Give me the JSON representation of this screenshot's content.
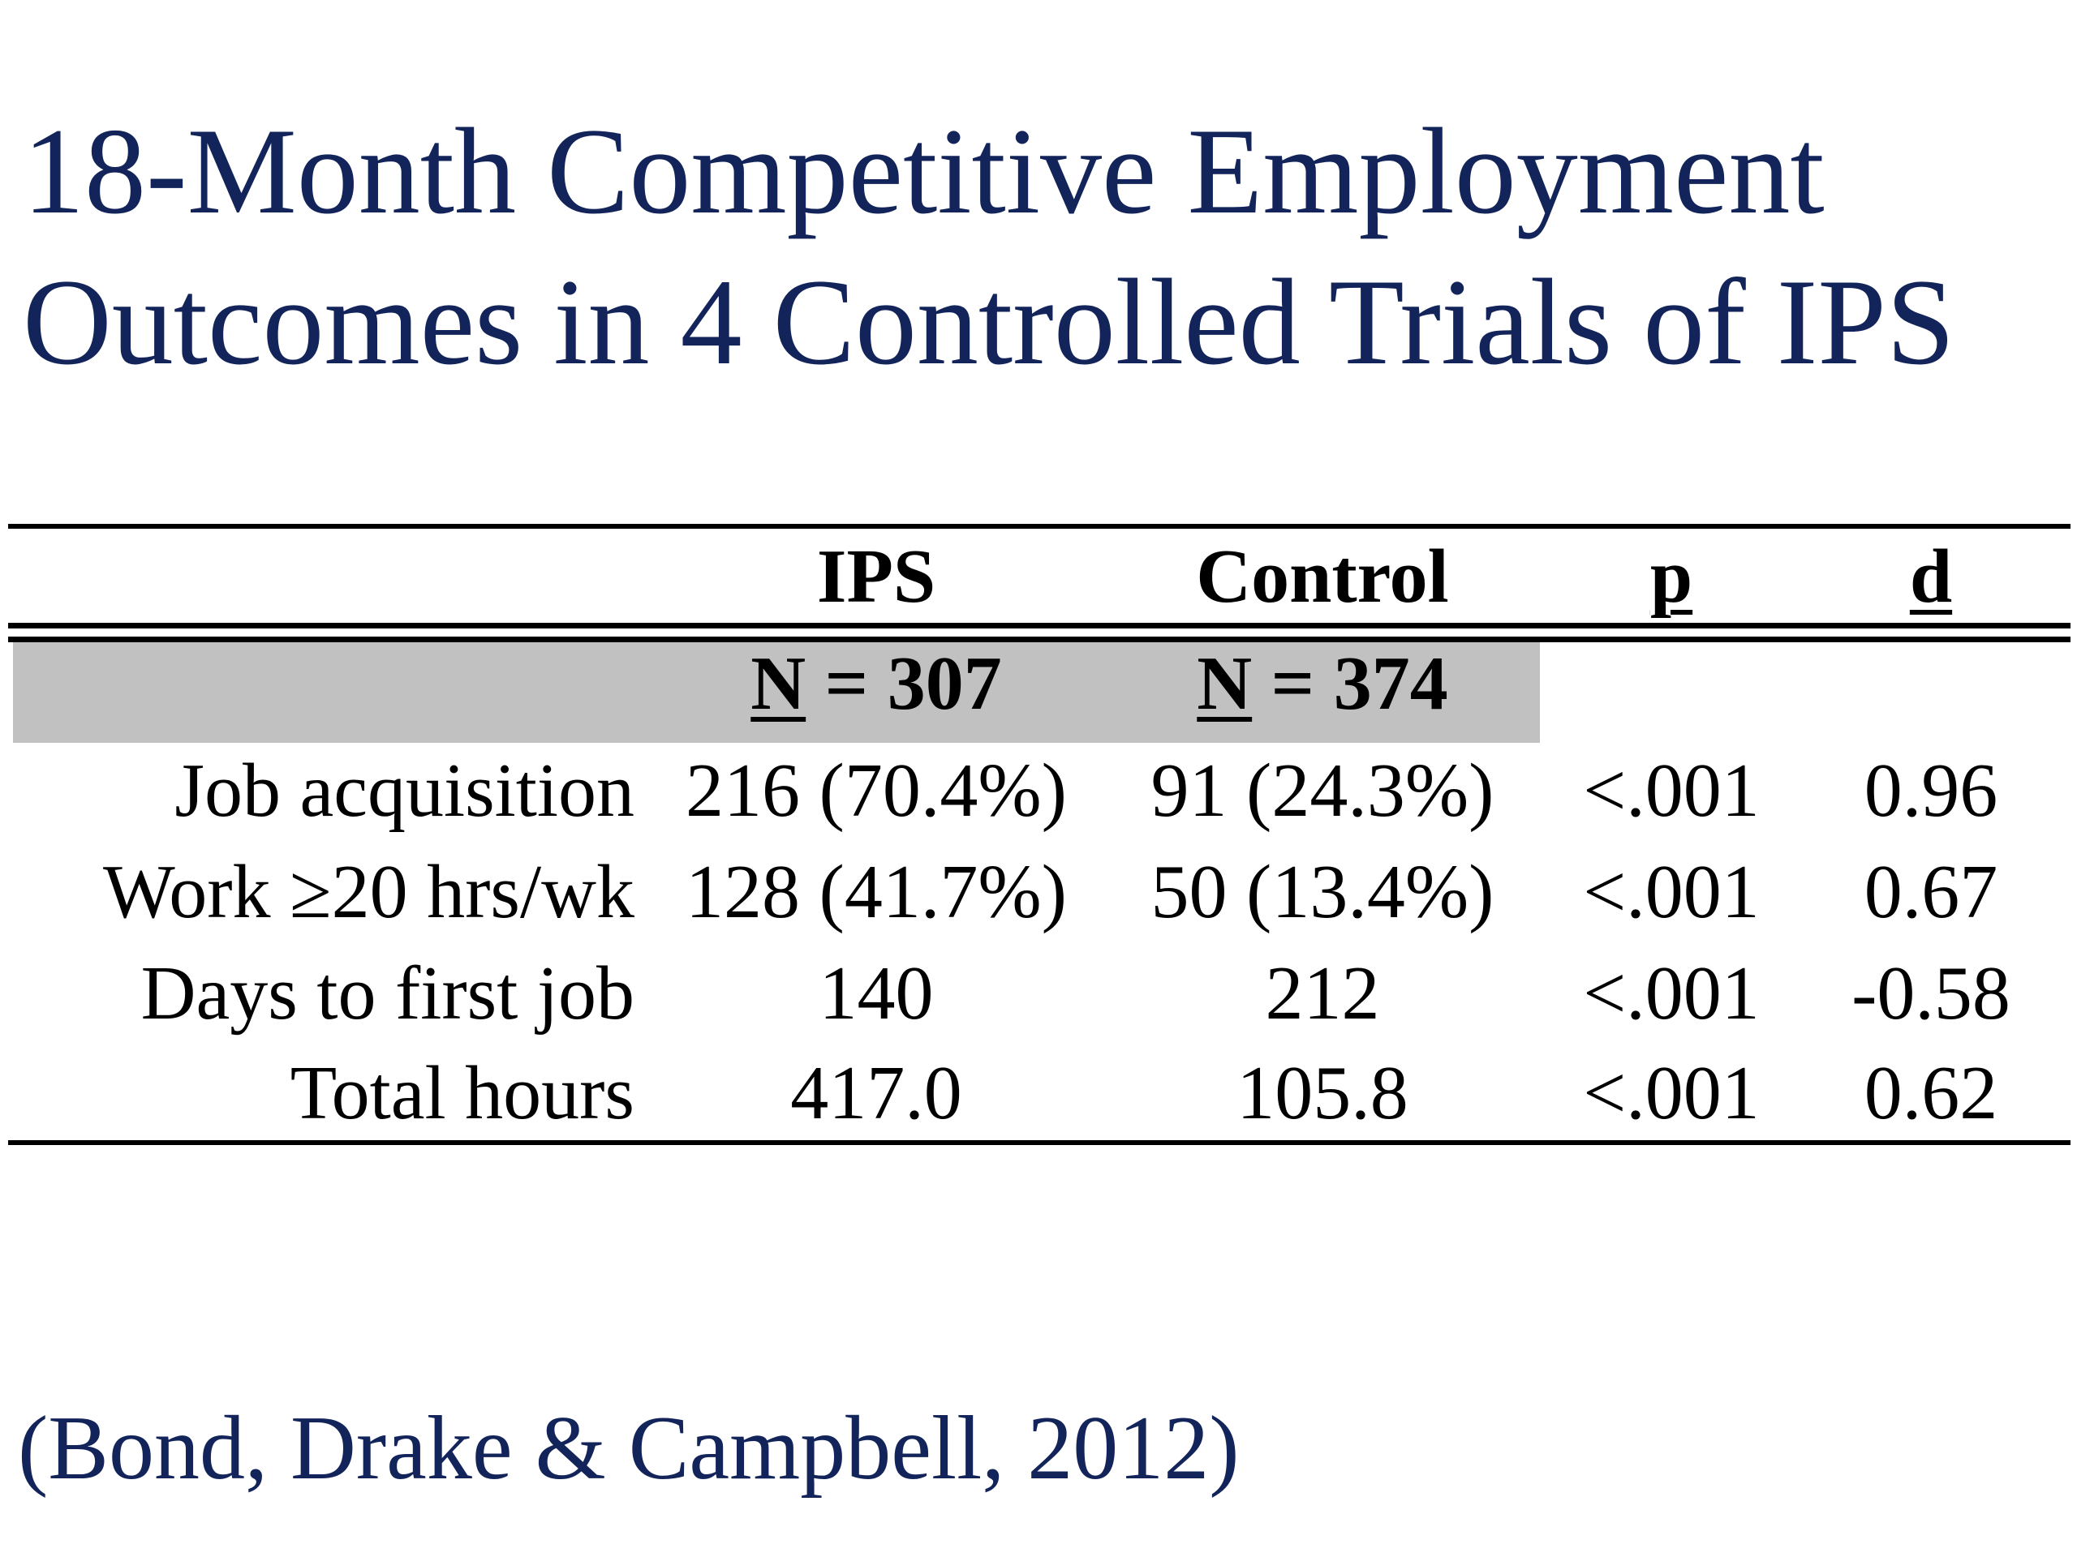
{
  "slide": {
    "title_line1": "18-Month Competitive Employment",
    "title_line2": "Outcomes in 4 Controlled Trials of IPS",
    "citation": "(Bond, Drake & Campbell, 2012)",
    "colors": {
      "title": "#12245a",
      "header_shade": "#c1c1c1",
      "text": "#000000"
    }
  },
  "table": {
    "headers": {
      "ips": "IPS",
      "control": "Control",
      "p": "p",
      "d": "d"
    },
    "sample_sizes": {
      "ips_n": "N",
      "ips_value": " = 307",
      "control_n": "N",
      "control_value": " = 374"
    },
    "rows": [
      {
        "label": "Job acquisition",
        "ips": "216 (70.4%)",
        "control": "91 (24.3%)",
        "p": "<.001",
        "d": "0.96"
      },
      {
        "label": "Work ≥20 hrs/wk",
        "ips": "128 (41.7%)",
        "control": "50 (13.4%)",
        "p": "<.001",
        "d": "0.67"
      },
      {
        "label": "Days to first job",
        "ips": "140",
        "control": "212",
        "p": "<.001",
        "d": "-0.58"
      },
      {
        "label": "Total hours",
        "ips": "417.0",
        "control": "105.8",
        "p": "<.001",
        "d": "0.62"
      }
    ]
  }
}
